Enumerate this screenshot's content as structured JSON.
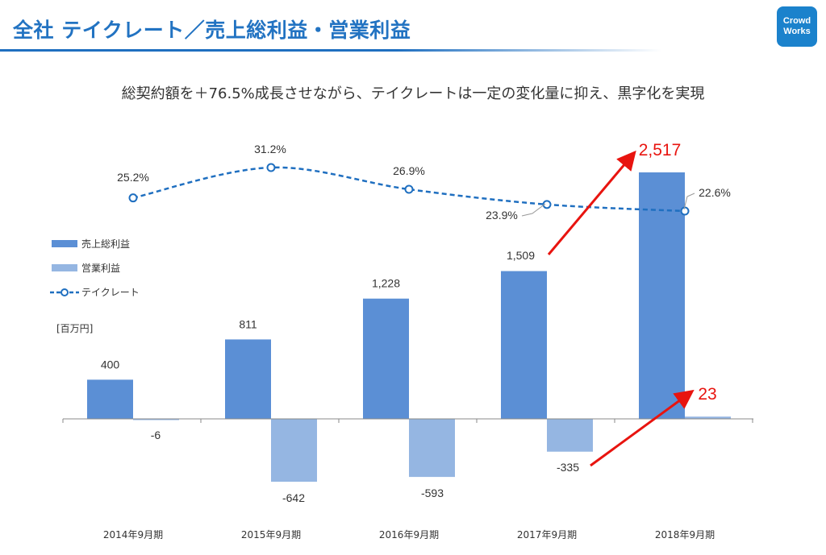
{
  "header": {
    "title": "全社 テイクレート／売上総利益・営業利益",
    "logo_line1": "Crowd",
    "logo_line2": "Works"
  },
  "subtitle": "総契約額を＋76.5%成長させながら、テイクレートは一定の変化量に抑え、黒字化を実現",
  "colors": {
    "gross_profit": "#5b8fd5",
    "operating_profit": "#95b6e2",
    "take_rate": "#1f6fc0",
    "highlight": "#e8140f"
  },
  "chart_data": {
    "type": "bar",
    "categories": [
      "2014年9月期",
      "2015年9月期",
      "2016年9月期",
      "2017年9月期",
      "2018年9月期"
    ],
    "unit": "[百万円]",
    "series": [
      {
        "name": "売上総利益",
        "values": [
          400,
          811,
          1228,
          1509,
          2517
        ],
        "labels": [
          "400",
          "811",
          "1,228",
          "1,509",
          "2,517"
        ]
      },
      {
        "name": "営業利益",
        "values": [
          -6,
          -642,
          -593,
          -335,
          23
        ],
        "labels": [
          "-6",
          "-642",
          "-593",
          "-335",
          "23"
        ]
      }
    ],
    "line": {
      "name": "テイクレート",
      "values": [
        25.2,
        31.2,
        26.9,
        23.9,
        22.6
      ],
      "labels": [
        "25.2%",
        "31.2%",
        "26.9%",
        "23.9%",
        "22.6%"
      ]
    },
    "legend": [
      "売上総利益",
      "営業利益",
      "テイクレート"
    ],
    "legend_position": "left",
    "grid": false
  }
}
